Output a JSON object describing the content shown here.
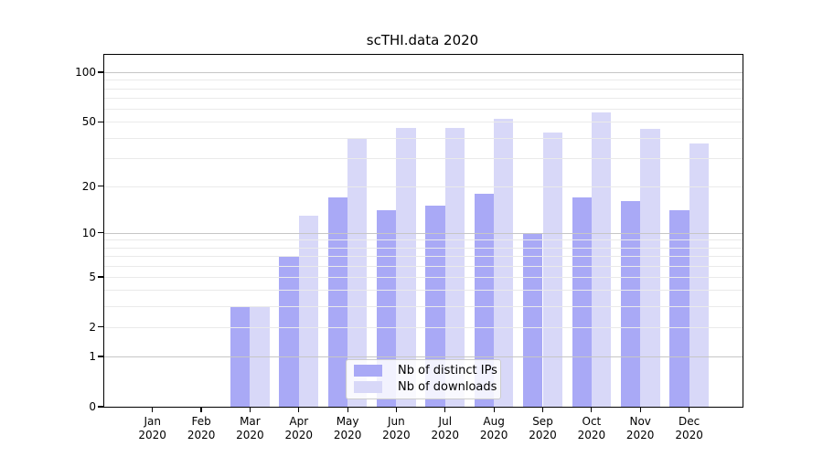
{
  "title": "scTHI.data 2020",
  "chart_data": {
    "type": "bar",
    "title": "scTHI.data 2020",
    "categories": [
      "Jan",
      "Feb",
      "Mar",
      "Apr",
      "May",
      "Jun",
      "Jul",
      "Aug",
      "Sep",
      "Oct",
      "Nov",
      "Dec"
    ],
    "year_label": "2020",
    "series": [
      {
        "name": "Nb of distinct IPs",
        "color": "#a9a9f6",
        "values": [
          0,
          0,
          3,
          7,
          17,
          14,
          15,
          18,
          10,
          17,
          16,
          14
        ]
      },
      {
        "name": "Nb of downloads",
        "color": "#d8d8f8",
        "values": [
          0,
          0,
          3,
          13,
          40,
          46,
          46,
          52,
          43,
          57,
          45,
          37
        ]
      }
    ],
    "xlabel": "",
    "ylabel": "",
    "yscale": "log1p",
    "ylim": [
      0,
      128
    ],
    "yticks": [
      0,
      1,
      2,
      5,
      10,
      20,
      50,
      100
    ],
    "grid_major": [
      1,
      10,
      100
    ],
    "grid_minor": [
      2,
      3,
      4,
      5,
      6,
      7,
      8,
      9,
      20,
      30,
      40,
      50,
      60,
      70,
      80,
      90
    ],
    "grid": "horizontal, drawn above bars",
    "legend_position": "lower center"
  }
}
